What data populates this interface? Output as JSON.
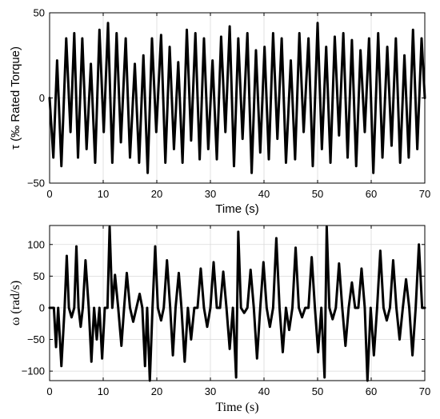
{
  "chart_data": [
    {
      "type": "line",
      "xlabel": "Time (s)",
      "ylabel": "τ (‰ Rated Torque)",
      "xlim": [
        0,
        70
      ],
      "ylim": [
        -50,
        50
      ],
      "xticks": [
        0,
        10,
        20,
        30,
        40,
        50,
        60,
        70
      ],
      "yticks": [
        -50,
        0,
        50
      ],
      "ytick_labels": [
        "−50",
        "0",
        "50"
      ],
      "grid": true,
      "legend": "none",
      "line_color": "#000000",
      "series": [
        {
          "x": [
            0,
            0.7,
            1.4,
            2.2,
            3.1,
            3.9,
            4.6,
            5.3,
            6.1,
            6.9,
            7.7,
            8.5,
            9.3,
            10.1,
            10.9,
            11.7,
            12.5,
            13.3,
            14.2,
            15.0,
            15.9,
            16.7,
            17.5,
            18.3,
            19.1,
            19.9,
            20.8,
            21.6,
            22.4,
            23.2,
            24.0,
            24.8,
            25.6,
            26.4,
            27.2,
            28.0,
            28.8,
            29.6,
            30.4,
            31.2,
            32.0,
            32.8,
            33.6,
            34.4,
            35.2,
            36.0,
            36.9,
            37.7,
            38.5,
            39.3,
            40.1,
            40.9,
            41.7,
            42.5,
            43.3,
            44.1,
            45.0,
            45.8,
            46.6,
            47.4,
            48.3,
            49.1,
            50.0,
            50.8,
            51.6,
            52.4,
            53.2,
            54.0,
            54.8,
            55.6,
            56.4,
            57.2,
            58.0,
            58.8,
            59.6,
            60.4,
            61.3,
            62.1,
            63.0,
            63.8,
            64.6,
            65.4,
            66.2,
            67.0,
            67.8,
            68.6,
            69.4,
            70
          ],
          "y": [
            0,
            -35,
            22,
            -40,
            35,
            -20,
            38,
            -35,
            35,
            -30,
            20,
            -38,
            40,
            -20,
            44,
            -38,
            38,
            -26,
            35,
            -35,
            20,
            -38,
            25,
            -44,
            35,
            -20,
            37,
            -38,
            30,
            -30,
            21,
            -38,
            40,
            -25,
            38,
            -36,
            35,
            -30,
            22,
            -36,
            36,
            -20,
            42,
            -40,
            35,
            -24,
            38,
            -44,
            28,
            -32,
            30,
            -36,
            38,
            -24,
            35,
            -38,
            22,
            -36,
            38,
            -20,
            35,
            -40,
            44,
            -30,
            30,
            -38,
            36,
            -22,
            38,
            -35,
            34,
            -40,
            28,
            -20,
            35,
            -44,
            38,
            -35,
            30,
            -28,
            35,
            -38,
            25,
            -35,
            40,
            -30,
            35,
            0
          ]
        }
      ]
    },
    {
      "type": "line",
      "xlabel": "Time (s)",
      "ylabel": "ω (rad/s)",
      "xlim": [
        0,
        70
      ],
      "ylim": [
        -115,
        130
      ],
      "xticks": [
        0,
        10,
        20,
        30,
        40,
        50,
        60,
        70
      ],
      "yticks": [
        -100,
        -50,
        0,
        50,
        100
      ],
      "ytick_labels": [
        "−100",
        "−50",
        "0",
        "50",
        "100"
      ],
      "grid": true,
      "legend": "none",
      "line_color": "#000000",
      "series": [
        {
          "x": [
            0,
            0.8,
            1.2,
            1.6,
            2.2,
            2.8,
            3.2,
            3.6,
            4.1,
            4.6,
            5.0,
            5.4,
            5.8,
            6.2,
            6.7,
            7.3,
            7.8,
            8.3,
            8.8,
            9.3,
            9.8,
            10.3,
            10.8,
            11.2,
            11.7,
            12.2,
            12.8,
            13.4,
            13.9,
            14.4,
            15.0,
            15.6,
            16.2,
            16.8,
            17.3,
            17.8,
            18.2,
            18.7,
            19.2,
            19.7,
            20.2,
            20.8,
            21.3,
            21.9,
            22.5,
            23.0,
            23.5,
            24.1,
            24.6,
            25.2,
            25.8,
            26.4,
            27.0,
            27.6,
            28.2,
            28.8,
            29.4,
            30.0,
            30.6,
            31.2,
            31.8,
            32.4,
            33.0,
            33.6,
            34.2,
            34.8,
            35.2,
            35.7,
            36.3,
            36.9,
            37.5,
            38.1,
            38.7,
            39.3,
            39.9,
            40.5,
            41.1,
            41.7,
            42.3,
            42.9,
            43.5,
            44.1,
            44.7,
            45.3,
            45.9,
            46.5,
            47.1,
            47.7,
            48.3,
            48.9,
            49.5,
            50.1,
            50.7,
            51.3,
            51.7,
            52.2,
            52.8,
            53.4,
            54.0,
            54.6,
            55.2,
            55.8,
            56.4,
            57.0,
            57.6,
            58.2,
            58.8,
            59.3,
            59.9,
            60.5,
            61.1,
            61.7,
            62.3,
            62.9,
            63.5,
            64.1,
            64.7,
            65.3,
            65.9,
            66.5,
            67.1,
            67.7,
            68.3,
            68.9,
            69.5,
            70
          ],
          "y": [
            0,
            0,
            -62,
            0,
            -92,
            0,
            82,
            0,
            -15,
            0,
            97,
            0,
            -30,
            0,
            75,
            0,
            -85,
            0,
            -50,
            0,
            -80,
            0,
            0,
            128,
            0,
            52,
            0,
            -60,
            0,
            55,
            0,
            -22,
            0,
            22,
            0,
            -92,
            0,
            -115,
            0,
            97,
            0,
            -20,
            0,
            75,
            0,
            -75,
            0,
            55,
            0,
            -85,
            0,
            -50,
            0,
            0,
            62,
            0,
            -30,
            0,
            72,
            0,
            0,
            57,
            0,
            -65,
            0,
            -110,
            120,
            0,
            -8,
            0,
            60,
            0,
            -80,
            0,
            72,
            0,
            -30,
            0,
            110,
            0,
            -70,
            0,
            -35,
            0,
            95,
            0,
            -15,
            0,
            0,
            80,
            0,
            -70,
            0,
            -110,
            128,
            0,
            -18,
            0,
            70,
            0,
            -60,
            0,
            40,
            0,
            0,
            62,
            0,
            -115,
            0,
            -75,
            0,
            90,
            0,
            -20,
            0,
            75,
            0,
            -50,
            0,
            45,
            0,
            -75,
            0,
            100,
            0,
            0
          ]
        }
      ]
    }
  ]
}
